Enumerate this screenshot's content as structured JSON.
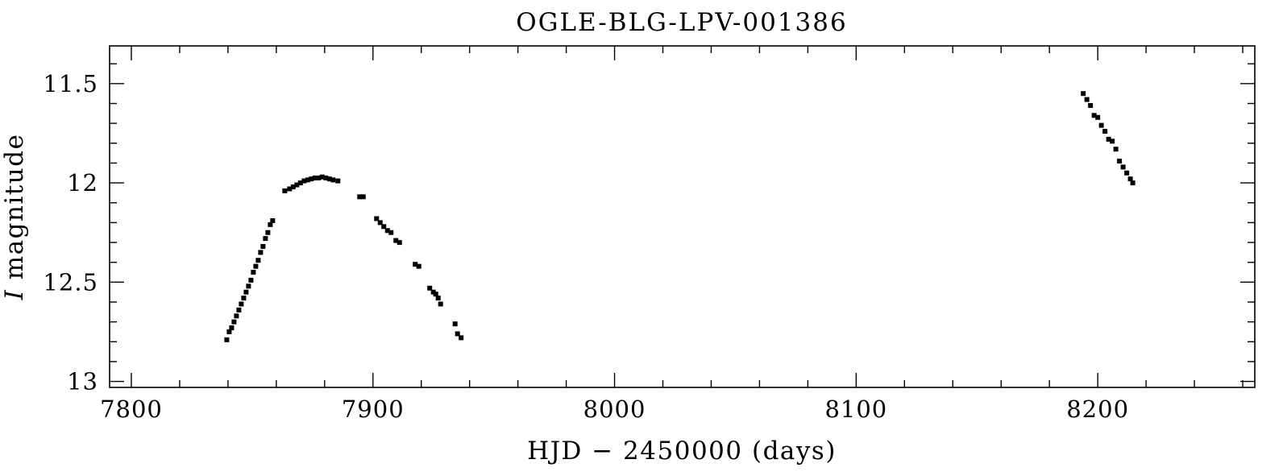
{
  "chart_data": {
    "type": "scatter",
    "title": "OGLE-BLG-LPV-001386",
    "xlabel": "HJD − 2450000 (days)",
    "ylabel_italic": "I",
    "ylabel_rest": " magnitude",
    "xlim": [
      7791,
      8265
    ],
    "ylim": [
      11.31,
      13.03
    ],
    "y_inverted": true,
    "x_ticks_major": [
      7800,
      7900,
      8000,
      8100,
      8200
    ],
    "x_tick_labels": [
      "7800",
      "7900",
      "8000",
      "8100",
      "8200"
    ],
    "x_ticks_minor_step": 20,
    "y_ticks_major": [
      11.5,
      12,
      12.5,
      13
    ],
    "y_tick_labels": [
      "11.5",
      "12",
      "12.5",
      "13"
    ],
    "y_ticks_minor_step": 0.1,
    "grid": false,
    "marker_color": "#000000",
    "series": [
      {
        "points": [
          [
            7839.5,
            12.79
          ],
          [
            7840.5,
            12.75
          ],
          [
            7841.5,
            12.73
          ],
          [
            7842.5,
            12.7
          ],
          [
            7843.5,
            12.67
          ],
          [
            7844.5,
            12.64
          ],
          [
            7845.5,
            12.61
          ],
          [
            7846.5,
            12.58
          ],
          [
            7847.5,
            12.55
          ],
          [
            7848.5,
            12.52
          ],
          [
            7849.5,
            12.49
          ],
          [
            7850.5,
            12.45
          ],
          [
            7851.5,
            12.42
          ],
          [
            7852.5,
            12.39
          ],
          [
            7853.5,
            12.35
          ],
          [
            7854.5,
            12.32
          ],
          [
            7855.5,
            12.28
          ],
          [
            7856.5,
            12.25
          ],
          [
            7857.5,
            12.21
          ],
          [
            7858.5,
            12.19
          ],
          [
            7863.5,
            12.04
          ],
          [
            7865.5,
            12.03
          ],
          [
            7867.0,
            12.02
          ],
          [
            7868.5,
            12.01
          ],
          [
            7870.0,
            12.0
          ],
          [
            7871.5,
            11.99
          ],
          [
            7873.0,
            11.985
          ],
          [
            7874.5,
            11.98
          ],
          [
            7876.0,
            11.975
          ],
          [
            7877.5,
            11.975
          ],
          [
            7879.0,
            11.97
          ],
          [
            7880.5,
            11.975
          ],
          [
            7882.0,
            11.98
          ],
          [
            7883.5,
            11.985
          ],
          [
            7885.5,
            11.99
          ],
          [
            7894.5,
            12.07
          ],
          [
            7896.0,
            12.07
          ],
          [
            7901.5,
            12.18
          ],
          [
            7903.0,
            12.2
          ],
          [
            7904.5,
            12.22
          ],
          [
            7906.0,
            12.24
          ],
          [
            7907.5,
            12.25
          ],
          [
            7909.5,
            12.29
          ],
          [
            7911.0,
            12.3
          ],
          [
            7917.5,
            12.41
          ],
          [
            7919.0,
            12.42
          ],
          [
            7923.5,
            12.53
          ],
          [
            7925.0,
            12.55
          ],
          [
            7926.0,
            12.56
          ],
          [
            7927.0,
            12.58
          ],
          [
            7928.0,
            12.61
          ],
          [
            7934.0,
            12.71
          ],
          [
            7935.0,
            12.76
          ],
          [
            7936.5,
            12.78
          ],
          [
            8194.0,
            11.55
          ],
          [
            8195.5,
            11.58
          ],
          [
            8197.0,
            11.61
          ],
          [
            8198.5,
            11.66
          ],
          [
            8200.0,
            11.67
          ],
          [
            8201.5,
            11.71
          ],
          [
            8203.0,
            11.74
          ],
          [
            8204.5,
            11.78
          ],
          [
            8206.0,
            11.79
          ],
          [
            8207.5,
            11.83
          ],
          [
            8209.0,
            11.89
          ],
          [
            8210.5,
            11.92
          ],
          [
            8212.0,
            11.95
          ],
          [
            8213.5,
            11.98
          ],
          [
            8214.5,
            12.0
          ]
        ]
      }
    ]
  }
}
